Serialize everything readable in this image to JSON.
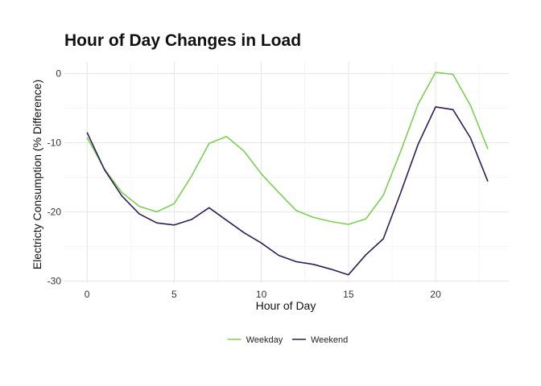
{
  "chart_data": {
    "type": "line",
    "title": "Hour of Day Changes in Load",
    "xlabel": "Hour of Day",
    "ylabel": "Electricty Consumption (% Difference)",
    "x": [
      0,
      1,
      2,
      3,
      4,
      5,
      6,
      7,
      8,
      9,
      10,
      11,
      12,
      13,
      14,
      15,
      16,
      17,
      18,
      19,
      20,
      21,
      22,
      23
    ],
    "xlim": [
      -1.3,
      24.2
    ],
    "ylim": [
      -30.3,
      1.7
    ],
    "x_ticks": [
      0,
      5,
      10,
      15,
      20
    ],
    "y_ticks": [
      0,
      -10,
      -20,
      -30
    ],
    "grid": true,
    "legend_position": "bottom",
    "series": [
      {
        "name": "Weekday",
        "color": "#7ad151",
        "values": [
          -9.2,
          -13.8,
          -17.2,
          -19.2,
          -20.0,
          -18.8,
          -14.8,
          -10.1,
          -9.1,
          -11.2,
          -14.5,
          -17.2,
          -19.8,
          -20.8,
          -21.4,
          -21.8,
          -21.0,
          -17.6,
          -11.2,
          -4.4,
          0.2,
          -0.1,
          -4.6,
          -10.9
        ]
      },
      {
        "name": "Weekend",
        "color": "#2d1e55",
        "values": [
          -8.5,
          -13.9,
          -17.7,
          -20.3,
          -21.6,
          -21.9,
          -21.1,
          -19.4,
          -21.2,
          -23.0,
          -24.5,
          -26.3,
          -27.2,
          -27.6,
          -28.3,
          -29.1,
          -26.2,
          -23.9,
          -17.2,
          -10.2,
          -4.8,
          -5.2,
          -9.3,
          -15.6
        ]
      }
    ]
  }
}
